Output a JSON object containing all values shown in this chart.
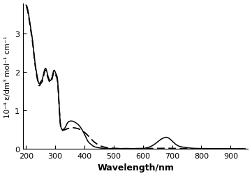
{
  "title": "",
  "xlabel": "Wavelength/nm",
  "ylabel": "10⁻⁴ ε/dm³ mol⁻¹ cm⁻¹",
  "xlim": [
    190,
    960
  ],
  "ylim": [
    0,
    3.8
  ],
  "yticks": [
    0,
    1,
    2,
    3
  ],
  "xticks": [
    200,
    300,
    400,
    500,
    600,
    700,
    800,
    900
  ],
  "background_color": "#ffffff",
  "line_color": "#000000",
  "solid_line": {
    "x": [
      200,
      208,
      215,
      222,
      230,
      238,
      245,
      250,
      255,
      260,
      263,
      267,
      270,
      273,
      277,
      280,
      283,
      287,
      290,
      293,
      297,
      300,
      303,
      307,
      310,
      313,
      317,
      320,
      325,
      330,
      335,
      340,
      345,
      350,
      360,
      370,
      380,
      390,
      400,
      405,
      410,
      420,
      430,
      440,
      450,
      460,
      470,
      480,
      490,
      500,
      520,
      540,
      560,
      580,
      600,
      620,
      640,
      650,
      660,
      670,
      680,
      690,
      700,
      710,
      720,
      740,
      760,
      780,
      800,
      850,
      900,
      950
    ],
    "y": [
      3.75,
      3.55,
      3.2,
      2.85,
      2.3,
      1.9,
      1.7,
      1.75,
      1.8,
      1.95,
      2.05,
      2.1,
      2.05,
      1.95,
      1.85,
      1.8,
      1.78,
      1.82,
      1.9,
      2.0,
      2.05,
      2.0,
      1.95,
      1.85,
      1.6,
      1.2,
      0.7,
      0.55,
      0.5,
      0.52,
      0.57,
      0.65,
      0.7,
      0.72,
      0.72,
      0.68,
      0.62,
      0.52,
      0.38,
      0.3,
      0.22,
      0.13,
      0.07,
      0.04,
      0.025,
      0.015,
      0.01,
      0.008,
      0.006,
      0.005,
      0.004,
      0.004,
      0.004,
      0.005,
      0.01,
      0.04,
      0.12,
      0.18,
      0.24,
      0.28,
      0.3,
      0.27,
      0.2,
      0.13,
      0.08,
      0.04,
      0.02,
      0.01,
      0.008,
      0.003,
      0.002,
      0.001
    ]
  },
  "dashed_line": {
    "x": [
      200,
      208,
      215,
      222,
      230,
      238,
      245,
      250,
      255,
      260,
      263,
      267,
      270,
      273,
      277,
      280,
      283,
      287,
      290,
      293,
      297,
      300,
      303,
      307,
      310,
      313,
      317,
      320,
      325,
      330,
      335,
      340,
      345,
      350,
      360,
      370,
      380,
      390,
      400,
      410,
      420,
      430,
      440,
      450,
      460,
      470,
      480,
      490,
      500,
      520,
      540,
      560,
      580,
      600,
      620,
      640,
      650,
      660,
      670,
      680,
      690,
      700,
      710,
      720,
      740,
      760,
      780,
      800,
      850,
      900,
      950
    ],
    "y": [
      3.7,
      3.5,
      3.15,
      2.8,
      2.25,
      1.85,
      1.65,
      1.7,
      1.75,
      1.9,
      2.0,
      2.05,
      2.0,
      1.9,
      1.82,
      1.75,
      1.73,
      1.78,
      1.85,
      1.95,
      2.0,
      1.95,
      1.9,
      1.8,
      1.55,
      1.15,
      0.68,
      0.52,
      0.48,
      0.49,
      0.5,
      0.52,
      0.53,
      0.54,
      0.55,
      0.54,
      0.52,
      0.48,
      0.43,
      0.36,
      0.28,
      0.2,
      0.14,
      0.09,
      0.06,
      0.04,
      0.025,
      0.018,
      0.012,
      0.008,
      0.006,
      0.005,
      0.005,
      0.006,
      0.008,
      0.01,
      0.012,
      0.013,
      0.013,
      0.013,
      0.012,
      0.01,
      0.008,
      0.006,
      0.004,
      0.003,
      0.002,
      0.002,
      0.001,
      0.001,
      0.0
    ]
  }
}
